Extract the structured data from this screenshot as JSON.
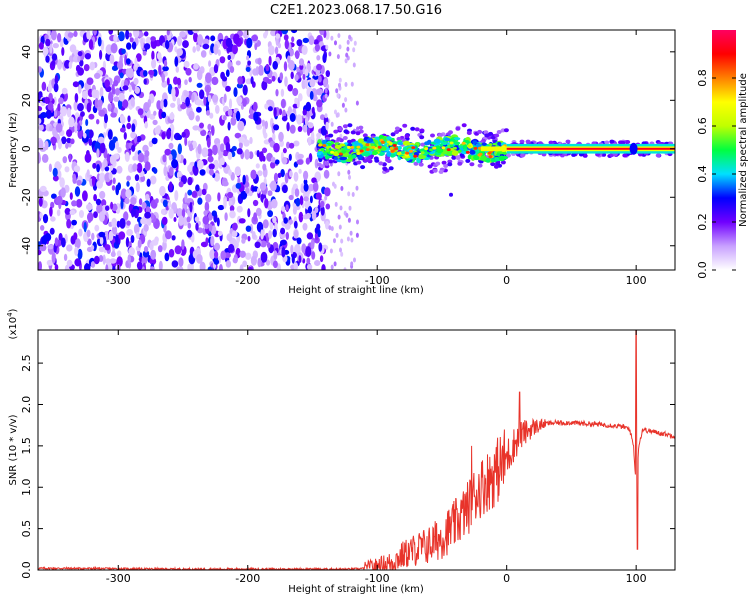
{
  "title": "C2E1.2023.068.17.50.G16",
  "chart_data": [
    {
      "type": "heatmap",
      "title": "C2E1.2023.068.17.50.G16",
      "xlabel": "Height of straight line (km)",
      "ylabel": "Frequency (Hz)",
      "xlim": [
        -362,
        130
      ],
      "ylim": [
        -50,
        49
      ],
      "x_ticks": [
        -300,
        -200,
        -100,
        0,
        100
      ],
      "y_ticks": [
        -40,
        -20,
        0,
        20,
        40
      ],
      "x_tick_labels": [
        "-300",
        "-200",
        "-100",
        "0",
        "100"
      ],
      "y_tick_labels": [
        "-40",
        "-20",
        "0",
        "20",
        "40"
      ],
      "colorbar": {
        "label": "Normalized spectral amplitude",
        "range": [
          0.0,
          1.0
        ],
        "ticks": [
          0.0,
          0.2,
          0.4,
          0.6,
          0.8
        ],
        "tick_labels": [
          "0.0",
          "0.2",
          "0.4",
          "0.6",
          "0.8"
        ],
        "colors": [
          "#ffffff",
          "#c8a0ff",
          "#7000ff",
          "#0000ff",
          "#00e0ff",
          "#00ff40",
          "#c0ff00",
          "#ffff00",
          "#ff8000",
          "#ff0000",
          "#ff0060"
        ]
      },
      "description_regions": [
        {
          "x_range": [
            -362,
            -140
          ],
          "pattern": "noise",
          "amplitude": [
            0.05,
            0.3
          ]
        },
        {
          "x_range": [
            -140,
            0
          ],
          "pattern": "signal band near 0 Hz",
          "amplitude": [
            0.3,
            0.9
          ]
        },
        {
          "x_range": [
            0,
            130
          ],
          "pattern": "narrow line at 0 Hz",
          "amplitude": [
            0.8,
            1.0
          ]
        }
      ]
    },
    {
      "type": "line",
      "xlabel": "Height of straight line (km)",
      "ylabel": "SNR (10 * v/v)",
      "exponent_label": "(x10",
      "exponent_power": "4",
      "exponent_close": ")",
      "xlim": [
        -362,
        130
      ],
      "ylim": [
        0.0,
        2.9
      ],
      "x_ticks": [
        -300,
        -200,
        -100,
        0,
        100
      ],
      "y_ticks": [
        0.0,
        0.5,
        1.0,
        1.5,
        2.0,
        2.5
      ],
      "x_tick_labels": [
        "-300",
        "-200",
        "-100",
        "0",
        "100"
      ],
      "y_tick_labels": [
        "0.0",
        "0.5",
        "1.0",
        "1.5",
        "2.0",
        "2.5"
      ],
      "series": [
        {
          "name": "SNR",
          "color": "#e8332a",
          "x": [
            -362,
            -340,
            -300,
            -250,
            -200,
            -150,
            -120,
            -110,
            -100,
            -90,
            -80,
            -70,
            -60,
            -50,
            -40,
            -30,
            -25,
            -20,
            -10,
            0,
            5,
            10,
            20,
            30,
            40,
            50,
            60,
            70,
            80,
            90,
            95,
            98,
            100,
            102,
            105,
            110,
            120,
            130
          ],
          "y": [
            0.02,
            0.02,
            0.015,
            0.01,
            0.01,
            0.01,
            0.01,
            0.02,
            0.04,
            0.08,
            0.18,
            0.25,
            0.3,
            0.4,
            0.55,
            0.75,
            0.9,
            1.0,
            1.15,
            1.35,
            1.5,
            1.62,
            1.72,
            1.77,
            1.78,
            1.78,
            1.77,
            1.76,
            1.75,
            1.73,
            1.7,
            1.5,
            1.0,
            1.5,
            1.7,
            1.68,
            1.65,
            1.62
          ]
        }
      ],
      "spikes": [
        {
          "x": -27,
          "y": 1.5
        },
        {
          "x": 10,
          "y": 2.15
        },
        {
          "x": 100,
          "y": 2.9
        },
        {
          "x": 101,
          "y": 0.25
        }
      ]
    }
  ]
}
